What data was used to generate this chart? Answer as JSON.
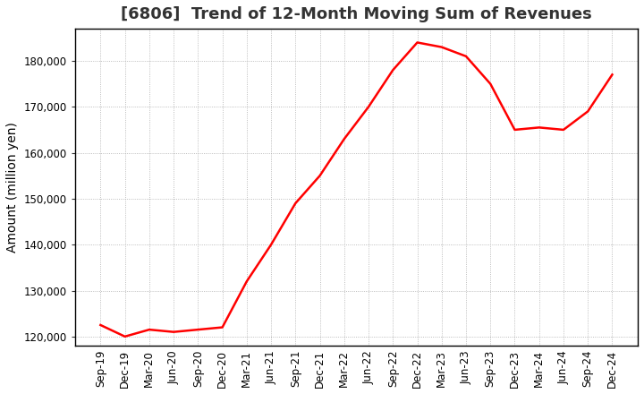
{
  "title": "[6806]  Trend of 12-Month Moving Sum of Revenues",
  "ylabel": "Amount (million yen)",
  "line_color": "#FF0000",
  "line_width": 1.8,
  "background_color": "#FFFFFF",
  "plot_bg_color": "#FFFFFF",
  "grid_color": "#AAAAAA",
  "xlabels": [
    "Sep-19",
    "Dec-19",
    "Mar-20",
    "Jun-20",
    "Sep-20",
    "Dec-20",
    "Mar-21",
    "Jun-21",
    "Sep-21",
    "Dec-21",
    "Mar-22",
    "Jun-22",
    "Sep-22",
    "Dec-22",
    "Mar-23",
    "Jun-23",
    "Sep-23",
    "Dec-23",
    "Mar-24",
    "Jun-24",
    "Sep-24",
    "Dec-24"
  ],
  "values": [
    122500,
    120000,
    121500,
    121000,
    121500,
    122000,
    132000,
    140000,
    149000,
    155000,
    163000,
    170000,
    178000,
    184000,
    183000,
    181000,
    175000,
    165000,
    165500,
    165000,
    169000,
    177000
  ],
  "ylim": [
    118000,
    187000
  ],
  "yticks": [
    120000,
    130000,
    140000,
    150000,
    160000,
    170000,
    180000
  ],
  "title_fontsize": 13,
  "tick_fontsize": 8.5,
  "ylabel_fontsize": 10
}
